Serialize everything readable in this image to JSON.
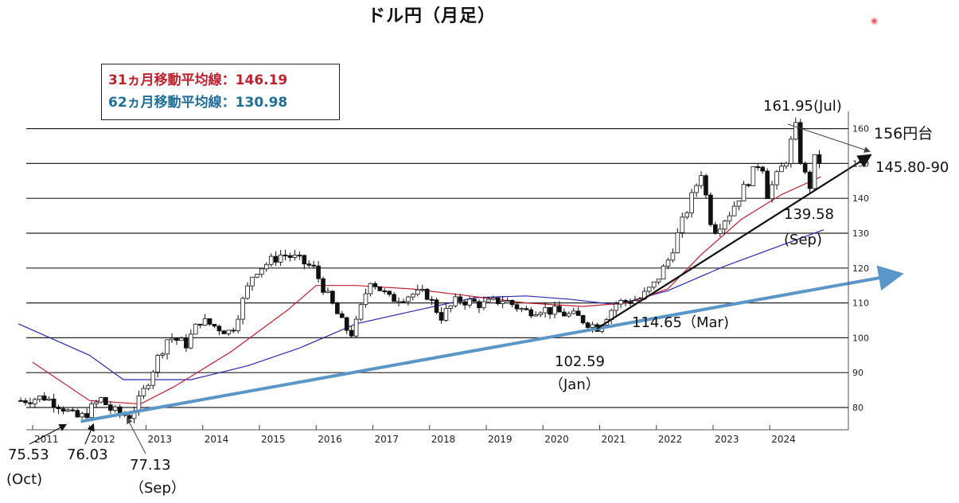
{
  "chart_data": {
    "type": "candlestick",
    "title": "ドル円（月足）",
    "legend": [
      {
        "label": "31ヵ月移動平均線：146.19",
        "color": "#c0202c"
      },
      {
        "label": "62ヵ月移動平均線：130.98",
        "color": "#1f6e98"
      }
    ],
    "y_axis": {
      "ylim": [
        75,
        165
      ],
      "ticks": [
        "160",
        "150",
        "140",
        "130",
        "120",
        "110",
        "100",
        "90",
        "80"
      ]
    },
    "x_axis": {
      "ticks": [
        "2011",
        "2012",
        "2013",
        "2014",
        "2015",
        "2016",
        "2017",
        "2018",
        "2019",
        "2020",
        "2021",
        "2022",
        "2023",
        "2024"
      ]
    },
    "series": {
      "candles_period": "2010-10 to 2024-10 monthly",
      "close_approx": [
        [
          2010.79,
          82.0
        ],
        [
          2011.2,
          83.0
        ],
        [
          2011.5,
          80.5
        ],
        [
          2011.75,
          77.0
        ],
        [
          2011.9,
          77.5
        ],
        [
          2012.2,
          82.5
        ],
        [
          2012.4,
          79.0
        ],
        [
          2012.7,
          77.5
        ],
        [
          2012.9,
          82.5
        ],
        [
          2013.2,
          94.0
        ],
        [
          2013.4,
          100.5
        ],
        [
          2013.7,
          98.0
        ],
        [
          2013.95,
          105.0
        ],
        [
          2014.5,
          101.5
        ],
        [
          2014.9,
          119.0
        ],
        [
          2015.4,
          124.0
        ],
        [
          2015.6,
          123.0
        ],
        [
          2015.95,
          120.0
        ],
        [
          2016.2,
          112.0
        ],
        [
          2016.5,
          103.0
        ],
        [
          2016.65,
          101.0
        ],
        [
          2016.95,
          117.0
        ],
        [
          2017.3,
          111.0
        ],
        [
          2017.7,
          112.5
        ],
        [
          2017.95,
          112.5
        ],
        [
          2018.2,
          106.0
        ],
        [
          2018.5,
          111.0
        ],
        [
          2018.95,
          109.5
        ],
        [
          2019.3,
          111.0
        ],
        [
          2019.7,
          107.5
        ],
        [
          2019.95,
          108.5
        ],
        [
          2020.2,
          107.5
        ],
        [
          2020.6,
          106.0
        ],
        [
          2020.95,
          103.0
        ],
        [
          2021.3,
          110.0
        ],
        [
          2021.7,
          111.0
        ],
        [
          2021.95,
          115.0
        ],
        [
          2022.2,
          122.0
        ],
        [
          2022.5,
          135.0
        ],
        [
          2022.8,
          148.0
        ],
        [
          2022.9,
          138.0
        ],
        [
          2023.0,
          130.5
        ],
        [
          2023.3,
          136.0
        ],
        [
          2023.6,
          144.5
        ],
        [
          2023.85,
          151.5
        ],
        [
          2023.95,
          141.0
        ],
        [
          2024.3,
          151.5
        ],
        [
          2024.45,
          161.0
        ],
        [
          2024.55,
          150.0
        ],
        [
          2024.7,
          143.0
        ],
        [
          2024.8,
          152.0
        ],
        [
          2024.95,
          149.5
        ]
      ],
      "ma31_approx": [
        [
          2011,
          93
        ],
        [
          2012,
          82
        ],
        [
          2012.9,
          81
        ],
        [
          2013.5,
          86
        ],
        [
          2014.5,
          96
        ],
        [
          2015.5,
          108
        ],
        [
          2016,
          115
        ],
        [
          2016.7,
          115
        ],
        [
          2017.7,
          114
        ],
        [
          2018.7,
          112
        ],
        [
          2019.7,
          110
        ],
        [
          2020.7,
          109
        ],
        [
          2021.5,
          110
        ],
        [
          2022.2,
          114
        ],
        [
          2022.8,
          124
        ],
        [
          2023.5,
          134
        ],
        [
          2024.2,
          141
        ],
        [
          2024.9,
          146.19
        ]
      ],
      "ma62_approx": [
        [
          2010.75,
          104
        ],
        [
          2012,
          95
        ],
        [
          2012.6,
          88
        ],
        [
          2013.8,
          88
        ],
        [
          2014.8,
          92
        ],
        [
          2015.7,
          97
        ],
        [
          2016.7,
          104
        ],
        [
          2017.8,
          108
        ],
        [
          2018.8,
          111.5
        ],
        [
          2019.7,
          112
        ],
        [
          2020.5,
          111
        ],
        [
          2021.3,
          109.5
        ],
        [
          2022.2,
          113.5
        ],
        [
          2023.2,
          120.5
        ],
        [
          2024.2,
          126.5
        ],
        [
          2024.95,
          130.98
        ]
      ]
    },
    "trendlines": [
      {
        "name": "long-term support",
        "from": [
          2011.85,
          76.0
        ],
        "to": [
          2025.8,
          118.0
        ],
        "color": "#5a96c8"
      },
      {
        "name": "short-term support",
        "from": [
          2020.95,
          102.6
        ],
        "to": [
          2025.6,
          153.0
        ],
        "color": "#111111"
      },
      {
        "name": "peak resistance",
        "from": [
          2024.5,
          161.95
        ],
        "to": [
          2025.4,
          155.0
        ],
        "color": "#555555"
      }
    ]
  },
  "title": "ドル円（月足）",
  "annotations": {
    "a1": "161.95(Jul)",
    "a2": "156円台",
    "a3": "145.80-90",
    "a4": "139.58",
    "a5": "(Sep)",
    "a6": "114.65（Mar)",
    "a7": "102.59",
    "a8": "（Jan）",
    "a9": "75.53",
    "a10": "(Oct)",
    "a11": "76.03",
    "a12": "77.13",
    "a13": "（Sep）"
  },
  "colors": {
    "ma31": "#c0202c",
    "ma62": "#2a2ab0",
    "long_trend": "#5a96c8",
    "grid": "#222222"
  }
}
